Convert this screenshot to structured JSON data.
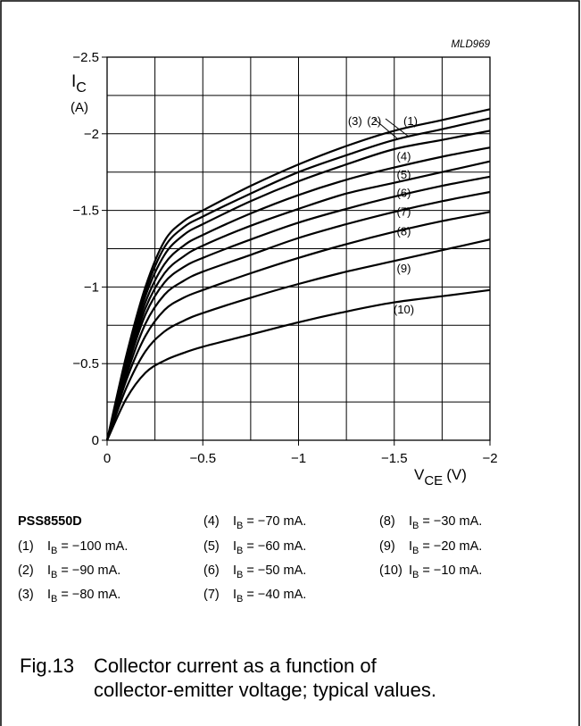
{
  "figure_code": "MLD969",
  "ylabel_main": "I",
  "ylabel_sub": "C",
  "ylabel_unit": "(A)",
  "xlabel_main": "V",
  "xlabel_sub": "CE",
  "xlabel_unit": "(V)",
  "device": "PSS8550D",
  "caption_num": "Fig.13",
  "caption_line1": "Collector current as a function of",
  "caption_line2": "collector-emitter voltage; typical values.",
  "chart_data": {
    "type": "line",
    "title": "",
    "xlabel": "VCE (V)",
    "ylabel": "IC (A)",
    "xlim": [
      0,
      -2
    ],
    "ylim": [
      0,
      -2.5
    ],
    "grid": true,
    "x_ticks": [
      {
        "value": 0,
        "label": "0"
      },
      {
        "value": -0.5,
        "label": "−0.5"
      },
      {
        "value": -1,
        "label": "−1"
      },
      {
        "value": -1.5,
        "label": "−1.5"
      },
      {
        "value": -2,
        "label": "−2"
      }
    ],
    "y_ticks": [
      {
        "value": 0,
        "label": "0"
      },
      {
        "value": -0.5,
        "label": "−0.5"
      },
      {
        "value": -1,
        "label": "−1"
      },
      {
        "value": -1.5,
        "label": "−1.5"
      },
      {
        "value": -2,
        "label": "−2"
      },
      {
        "value": -2.5,
        "label": "−2.5"
      }
    ],
    "x": [
      0,
      -0.1,
      -0.2,
      -0.3,
      -0.4,
      -0.5,
      -0.75,
      -1.0,
      -1.25,
      -1.5,
      -1.75,
      -2.0
    ],
    "series": [
      {
        "name": "(1)",
        "values": [
          0,
          -0.55,
          -1.0,
          -1.3,
          -1.43,
          -1.5,
          -1.66,
          -1.8,
          -1.92,
          -2.02,
          -2.09,
          -2.16
        ]
      },
      {
        "name": "(2)",
        "values": [
          0,
          -0.53,
          -0.97,
          -1.26,
          -1.39,
          -1.46,
          -1.61,
          -1.75,
          -1.86,
          -1.96,
          -2.03,
          -2.1
        ]
      },
      {
        "name": "(3)",
        "values": [
          0,
          -0.51,
          -0.94,
          -1.21,
          -1.34,
          -1.41,
          -1.56,
          -1.69,
          -1.8,
          -1.9,
          -1.96,
          -2.02
        ]
      },
      {
        "name": "(4)",
        "values": [
          0,
          -0.49,
          -0.9,
          -1.15,
          -1.27,
          -1.34,
          -1.48,
          -1.6,
          -1.7,
          -1.78,
          -1.85,
          -1.91
        ]
      },
      {
        "name": "(5)",
        "values": [
          0,
          -0.47,
          -0.86,
          -1.09,
          -1.2,
          -1.27,
          -1.4,
          -1.51,
          -1.61,
          -1.68,
          -1.75,
          -1.82
        ]
      },
      {
        "name": "(6)",
        "values": [
          0,
          -0.45,
          -0.82,
          -1.03,
          -1.13,
          -1.19,
          -1.31,
          -1.42,
          -1.51,
          -1.59,
          -1.66,
          -1.72
        ]
      },
      {
        "name": "(7)",
        "values": [
          0,
          -0.42,
          -0.76,
          -0.95,
          -1.04,
          -1.1,
          -1.21,
          -1.32,
          -1.41,
          -1.49,
          -1.56,
          -1.62
        ]
      },
      {
        "name": "(8)",
        "values": [
          0,
          -0.39,
          -0.68,
          -0.85,
          -0.93,
          -0.98,
          -1.09,
          -1.19,
          -1.28,
          -1.36,
          -1.43,
          -1.49
        ]
      },
      {
        "name": "(9)",
        "values": [
          0,
          -0.34,
          -0.58,
          -0.71,
          -0.78,
          -0.83,
          -0.93,
          -1.02,
          -1.1,
          -1.17,
          -1.24,
          -1.31
        ]
      },
      {
        "name": "(10)",
        "values": [
          0,
          -0.27,
          -0.44,
          -0.52,
          -0.57,
          -0.61,
          -0.69,
          -0.77,
          -0.84,
          -0.9,
          -0.94,
          -0.98
        ]
      }
    ],
    "curve_labels": [
      {
        "text": "(3)",
        "x": -1.295,
        "y": -2.08
      },
      {
        "text": "(2)",
        "x": -1.395,
        "y": -2.08
      },
      {
        "text": "(1)",
        "x": -1.585,
        "y": -2.08
      },
      {
        "text": "(4)",
        "x": -1.55,
        "y": -1.85
      },
      {
        "text": "(5)",
        "x": -1.55,
        "y": -1.73
      },
      {
        "text": "(6)",
        "x": -1.55,
        "y": -1.61
      },
      {
        "text": "(7)",
        "x": -1.55,
        "y": -1.49
      },
      {
        "text": "(8)",
        "x": -1.55,
        "y": -1.36
      },
      {
        "text": "(9)",
        "x": -1.55,
        "y": -1.12
      },
      {
        "text": "(10)",
        "x": -1.55,
        "y": -0.85
      }
    ]
  },
  "legend": [
    {
      "num": "(1)",
      "var": "I",
      "sub": "B",
      "rest": " = −100 mA."
    },
    {
      "num": "(2)",
      "var": "I",
      "sub": "B",
      "rest": " = −90 mA."
    },
    {
      "num": "(3)",
      "var": "I",
      "sub": "B",
      "rest": " = −80 mA."
    },
    {
      "num": "(4)",
      "var": "I",
      "sub": "B",
      "rest": " = −70 mA."
    },
    {
      "num": "(5)",
      "var": "I",
      "sub": "B",
      "rest": " = −60 mA."
    },
    {
      "num": "(6)",
      "var": "I",
      "sub": "B",
      "rest": " = −50 mA."
    },
    {
      "num": "(7)",
      "var": "I",
      "sub": "B",
      "rest": " = −40 mA."
    },
    {
      "num": "(8)",
      "var": "I",
      "sub": "B",
      "rest": " = −30 mA."
    },
    {
      "num": "(9)",
      "var": "I",
      "sub": "B",
      "rest": " = −20 mA."
    },
    {
      "num": "(10)",
      "var": "I",
      "sub": "B",
      "rest": " = −10 mA."
    }
  ]
}
